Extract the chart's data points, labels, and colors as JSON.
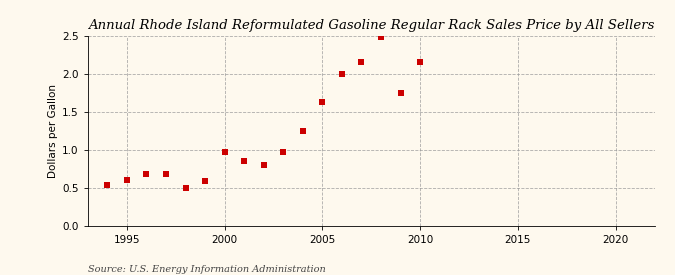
{
  "title": "Annual Rhode Island Reformulated Gasoline Regular Rack Sales Price by All Sellers",
  "ylabel": "Dollars per Gallon",
  "source": "Source: U.S. Energy Information Administration",
  "years": [
    1994,
    1995,
    1996,
    1997,
    1998,
    1999,
    2000,
    2001,
    2002,
    2003,
    2004,
    2005,
    2006,
    2007,
    2008,
    2009,
    2010
  ],
  "values": [
    0.54,
    0.6,
    0.68,
    0.68,
    0.5,
    0.59,
    0.97,
    0.85,
    0.8,
    0.97,
    1.25,
    1.63,
    2.0,
    2.15,
    2.48,
    1.75,
    2.15
  ],
  "xlim": [
    1993,
    2022
  ],
  "ylim": [
    0.0,
    2.5
  ],
  "xticks": [
    1995,
    2000,
    2005,
    2010,
    2015,
    2020
  ],
  "yticks": [
    0.0,
    0.5,
    1.0,
    1.5,
    2.0,
    2.5
  ],
  "marker_color": "#cc0000",
  "marker": "s",
  "marker_size": 16,
  "background_color": "#fef9ee",
  "grid_color": "#999999",
  "title_fontsize": 9.5,
  "label_fontsize": 7.5,
  "tick_fontsize": 7.5,
  "source_fontsize": 7
}
